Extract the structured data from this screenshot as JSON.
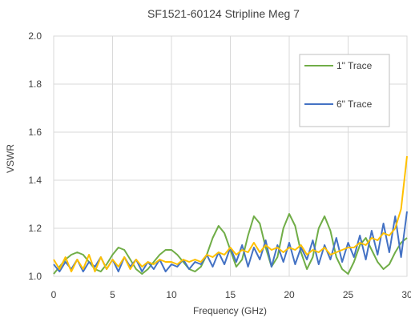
{
  "chart_data": {
    "type": "line",
    "title": "SF1521-60124 Stripline Meg 7",
    "xlabel": "Frequency (GHz)",
    "ylabel": "VSWR",
    "xlim": [
      0,
      30
    ],
    "ylim": [
      1.0,
      2.0
    ],
    "x_ticks": [
      "0",
      "5",
      "10",
      "15",
      "20",
      "25",
      "30"
    ],
    "y_ticks": [
      "1.0",
      "1.2",
      "1.4",
      "1.6",
      "1.8",
      "2.0"
    ],
    "grid": true,
    "legend_position": "top-right",
    "series": [
      {
        "name": "1\" Trace",
        "color": "#70AD47",
        "x": [
          0,
          0.5,
          1,
          1.5,
          2,
          2.5,
          3,
          3.5,
          4,
          4.5,
          5,
          5.5,
          6,
          6.5,
          7,
          7.5,
          8,
          8.5,
          9,
          9.5,
          10,
          10.5,
          11,
          11.5,
          12,
          12.5,
          13,
          13.5,
          14,
          14.5,
          15,
          15.5,
          16,
          16.5,
          17,
          17.5,
          18,
          18.5,
          19,
          19.5,
          20,
          20.5,
          21,
          21.5,
          22,
          22.5,
          23,
          23.5,
          24,
          24.5,
          25,
          25.5,
          26,
          26.5,
          27,
          27.5,
          28,
          28.5,
          29,
          29.5,
          30
        ],
        "values": [
          1.01,
          1.04,
          1.07,
          1.09,
          1.1,
          1.09,
          1.06,
          1.03,
          1.02,
          1.05,
          1.09,
          1.12,
          1.11,
          1.07,
          1.03,
          1.01,
          1.03,
          1.06,
          1.09,
          1.11,
          1.11,
          1.09,
          1.06,
          1.03,
          1.02,
          1.04,
          1.09,
          1.16,
          1.21,
          1.18,
          1.11,
          1.04,
          1.07,
          1.17,
          1.25,
          1.22,
          1.12,
          1.04,
          1.08,
          1.2,
          1.26,
          1.21,
          1.1,
          1.03,
          1.08,
          1.2,
          1.25,
          1.19,
          1.08,
          1.03,
          1.01,
          1.06,
          1.13,
          1.16,
          1.11,
          1.06,
          1.03,
          1.05,
          1.1,
          1.14,
          1.16
        ]
      },
      {
        "name": "6\" Trace",
        "color": "#4472C4",
        "x": [
          0,
          0.5,
          1,
          1.5,
          2,
          2.5,
          3,
          3.5,
          4,
          4.5,
          5,
          5.5,
          6,
          6.5,
          7,
          7.5,
          8,
          8.5,
          9,
          9.5,
          10,
          10.5,
          11,
          11.5,
          12,
          12.5,
          13,
          13.5,
          14,
          14.5,
          15,
          15.5,
          16,
          16.5,
          17,
          17.5,
          18,
          18.5,
          19,
          19.5,
          20,
          20.5,
          21,
          21.5,
          22,
          22.5,
          23,
          23.5,
          24,
          24.5,
          25,
          25.5,
          26,
          26.5,
          27,
          27.5,
          28,
          28.5,
          29,
          29.5,
          30
        ],
        "values": [
          1.05,
          1.02,
          1.06,
          1.03,
          1.07,
          1.02,
          1.06,
          1.04,
          1.08,
          1.03,
          1.07,
          1.02,
          1.08,
          1.04,
          1.07,
          1.02,
          1.06,
          1.03,
          1.07,
          1.02,
          1.05,
          1.04,
          1.07,
          1.03,
          1.06,
          1.05,
          1.09,
          1.04,
          1.1,
          1.05,
          1.12,
          1.06,
          1.13,
          1.04,
          1.12,
          1.07,
          1.15,
          1.04,
          1.13,
          1.06,
          1.14,
          1.05,
          1.12,
          1.07,
          1.15,
          1.05,
          1.13,
          1.07,
          1.16,
          1.06,
          1.14,
          1.08,
          1.17,
          1.07,
          1.19,
          1.09,
          1.22,
          1.1,
          1.25,
          1.08,
          1.27
        ]
      },
      {
        "name": "",
        "color": "#FFC000",
        "x": [
          0,
          0.5,
          1,
          1.5,
          2,
          2.5,
          3,
          3.5,
          4,
          4.5,
          5,
          5.5,
          6,
          6.5,
          7,
          7.5,
          8,
          8.5,
          9,
          9.5,
          10,
          10.5,
          11,
          11.5,
          12,
          12.5,
          13,
          13.5,
          14,
          14.5,
          15,
          15.5,
          16,
          16.5,
          17,
          17.5,
          18,
          18.5,
          19,
          19.5,
          20,
          20.5,
          21,
          21.5,
          22,
          22.5,
          23,
          23.5,
          24,
          24.5,
          25,
          25.5,
          26,
          26.5,
          27,
          27.5,
          28,
          28.5,
          29,
          29.5,
          30
        ],
        "values": [
          1.07,
          1.03,
          1.08,
          1.02,
          1.07,
          1.03,
          1.09,
          1.02,
          1.08,
          1.03,
          1.07,
          1.04,
          1.08,
          1.03,
          1.07,
          1.04,
          1.06,
          1.05,
          1.07,
          1.06,
          1.06,
          1.05,
          1.07,
          1.06,
          1.07,
          1.06,
          1.09,
          1.08,
          1.1,
          1.09,
          1.12,
          1.09,
          1.11,
          1.1,
          1.14,
          1.1,
          1.13,
          1.11,
          1.12,
          1.1,
          1.12,
          1.11,
          1.13,
          1.09,
          1.11,
          1.1,
          1.12,
          1.09,
          1.1,
          1.11,
          1.12,
          1.12,
          1.14,
          1.13,
          1.16,
          1.15,
          1.18,
          1.17,
          1.2,
          1.28,
          1.5
        ]
      }
    ]
  }
}
